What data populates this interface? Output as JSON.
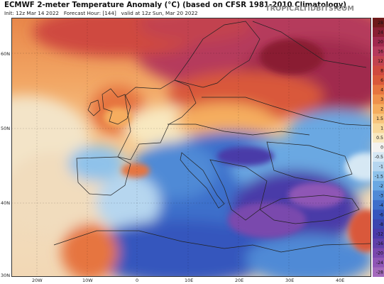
{
  "header": {
    "title": "ECMWF 2-meter Temperature Anomaly (°C) (based on CFSR 1981-2010 Climatology)",
    "init": "Init: 12z Mar 14 2022",
    "forecast_hour": "Forecast Hour: [144]",
    "valid": "valid at 12z Sun, Mar 20 2022",
    "brand": "TROPICALTIDBITS.COM"
  },
  "map": {
    "lat_labels": [
      "60N",
      "50N",
      "40N",
      "30N"
    ],
    "lon_labels": [
      "20W",
      "10W",
      "0",
      "10E",
      "20E",
      "30E",
      "40E"
    ]
  },
  "legend": {
    "ticks": [
      {
        "label": "28",
        "color": "#6e1a1a"
      },
      {
        "label": "24",
        "color": "#8a1f33"
      },
      {
        "label": "20",
        "color": "#a0294e"
      },
      {
        "label": "16",
        "color": "#b53a5c"
      },
      {
        "label": "12",
        "color": "#c2434f"
      },
      {
        "label": "8",
        "color": "#cf4a3f"
      },
      {
        "label": "6",
        "color": "#d9593a"
      },
      {
        "label": "4",
        "color": "#e6753f"
      },
      {
        "label": "3",
        "color": "#ef914b"
      },
      {
        "label": "2",
        "color": "#f5ad5e"
      },
      {
        "label": "1.5",
        "color": "#f7c47d"
      },
      {
        "label": "1",
        "color": "#f8d89b"
      },
      {
        "label": "0.5",
        "color": "#f8e8c0"
      },
      {
        "label": "0",
        "color": "#f3f2f0"
      },
      {
        "label": "-0.5",
        "color": "#d6e8f4"
      },
      {
        "label": "-1",
        "color": "#b6d6ef"
      },
      {
        "label": "-1.5",
        "color": "#8fc2ea"
      },
      {
        "label": "-2",
        "color": "#6aa8e2"
      },
      {
        "label": "-3",
        "color": "#4f8ad6"
      },
      {
        "label": "-4",
        "color": "#3d6fcb"
      },
      {
        "label": "-6",
        "color": "#3556bd"
      },
      {
        "label": "-8",
        "color": "#3b46b0"
      },
      {
        "label": "-12",
        "color": "#4a3aa8"
      },
      {
        "label": "-16",
        "color": "#6040a9"
      },
      {
        "label": "-20",
        "color": "#7a48ad"
      },
      {
        "label": "-24",
        "color": "#8f56b5"
      },
      {
        "label": "-28",
        "color": "#a36abc"
      }
    ]
  }
}
